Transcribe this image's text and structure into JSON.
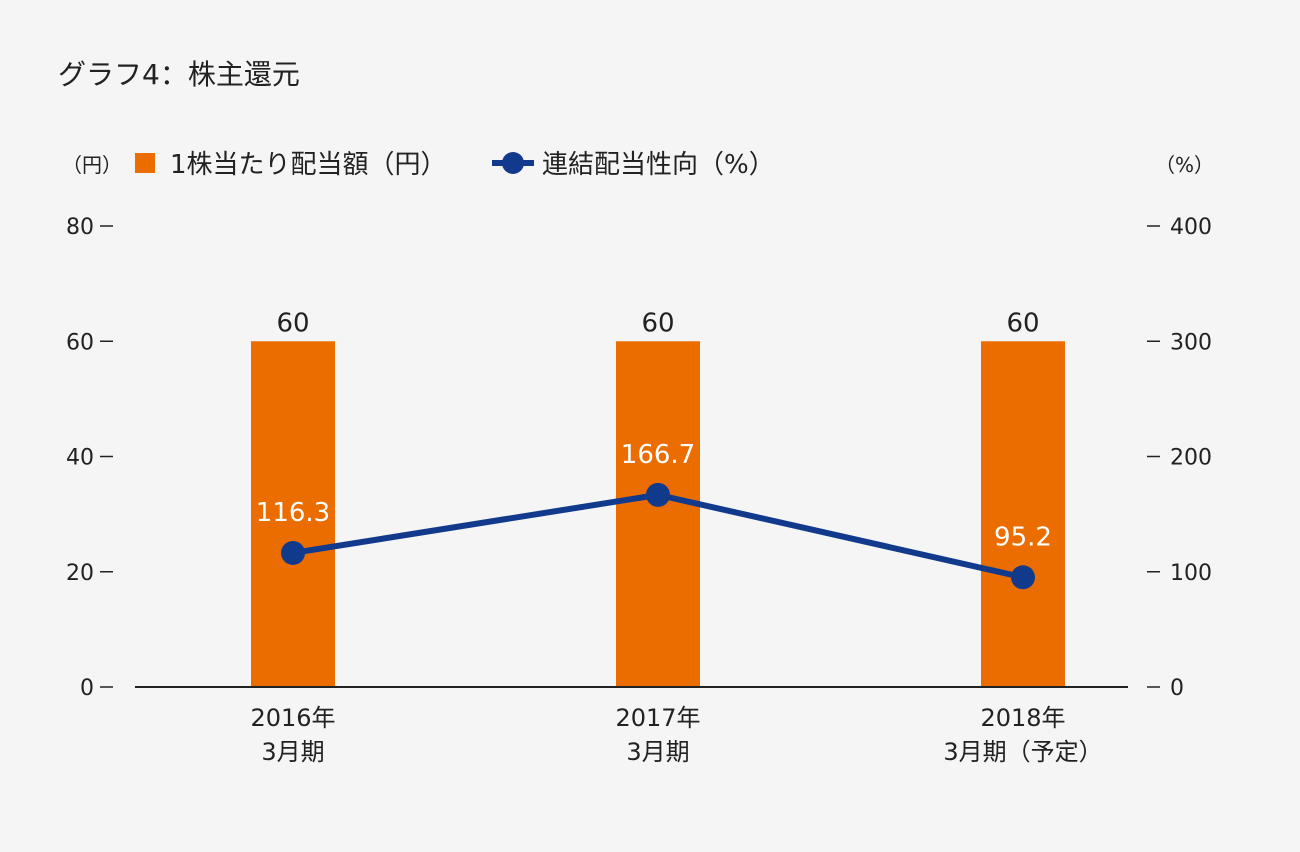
{
  "title": "グラフ4：株主還元",
  "colors": {
    "background": "#f5f5f5",
    "bar": "#eb6d00",
    "line": "#113a8d",
    "axis": "#222222",
    "line_label": "#ffffff"
  },
  "chart_data": {
    "type": "bar",
    "categories": [
      [
        "2016年",
        "3月期"
      ],
      [
        "2017年",
        "3月期"
      ],
      [
        "2018年",
        "3月期（予定）"
      ]
    ],
    "left_axis_unit": "（円）",
    "right_axis_unit": "（%）",
    "left_ylim": [
      0,
      80
    ],
    "right_ylim": [
      0,
      400
    ],
    "left_ticks": [
      0,
      20,
      40,
      60,
      80
    ],
    "right_ticks": [
      0,
      100,
      200,
      300,
      400
    ],
    "legend_position": "top",
    "grid": false,
    "series": [
      {
        "name": "1株当たり配当額（円）",
        "type": "bar",
        "axis": "left",
        "values": [
          60,
          60,
          60
        ],
        "labels": [
          "60",
          "60",
          "60"
        ]
      },
      {
        "name": "連結配当性向（%）",
        "type": "line",
        "axis": "right",
        "values": [
          116.3,
          166.7,
          95.2
        ],
        "labels": [
          "116.3",
          "166.7",
          "95.2"
        ]
      }
    ]
  }
}
